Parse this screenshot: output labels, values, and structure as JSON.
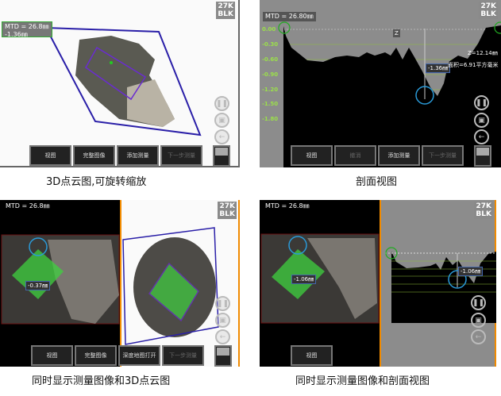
{
  "panels": [
    {
      "badge_top": "27K",
      "badge_bottom": "BLK",
      "mtd": "MTD = 26.8㎜",
      "depth": "-1.36㎜",
      "buttons": [
        "视图",
        "完整图像",
        "添加测量",
        "下一步测量"
      ],
      "caption": "3D点云图,可旋转缩放"
    },
    {
      "badge_top": "27K",
      "badge_bottom": "BLK",
      "mtd": "MTD = 26.80㎜",
      "axis_label": "Z",
      "y_ticks": [
        "0.00",
        "-0.30",
        "-0.60",
        "-0.90",
        "-1.20",
        "-1.50",
        "-1.80"
      ],
      "depth": "-1.36㎜",
      "z_value": "Z=12.14㎜",
      "area": "面积=6.91平方毫米",
      "buttons": [
        "视图",
        "撤消",
        "添加测量",
        "下一步测量"
      ],
      "caption": "剖面视图"
    },
    {
      "badge_top": "27K",
      "badge_bottom": "BLK",
      "mtd": "MTD = 26.8㎜",
      "depth": "-0.37㎜",
      "buttons": [
        "视图",
        "完整图像",
        "深度地图打开",
        "下一步测量"
      ],
      "caption": "同时显示测量图像和3D点云图"
    },
    {
      "badge_top": "27K",
      "badge_bottom": "BLK",
      "mtd": "MTD = 26.8㎜",
      "depth": "-1.06㎜",
      "buttons": [
        "视图"
      ],
      "caption": "同时显示测量图像和剖面视图"
    }
  ],
  "icons": {
    "pause": "pause-icon",
    "save": "save-icon",
    "back": "arrow-left-icon"
  },
  "colors": {
    "accent_orange": "#f08a00",
    "measure_blue": "#2a1fa8",
    "profile_green": "#9be04a"
  }
}
